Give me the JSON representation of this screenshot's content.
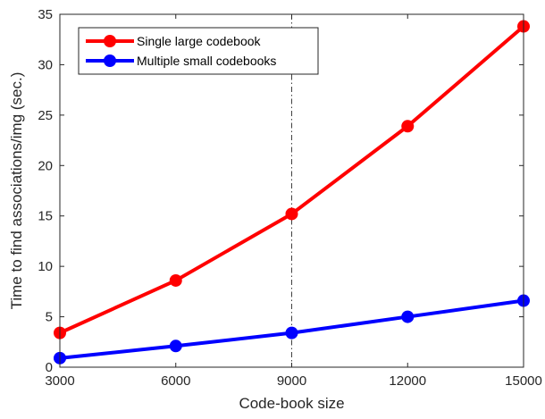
{
  "chart_data": {
    "type": "line",
    "title": "",
    "xlabel": "Code-book size",
    "ylabel": "Time to find associations/img (sec.)",
    "xlim": [
      3000,
      15000
    ],
    "ylim": [
      0,
      35
    ],
    "x": [
      3000,
      6000,
      9000,
      12000,
      15000
    ],
    "xticks": [
      "3000",
      "6000",
      "9000",
      "12000",
      "15000"
    ],
    "yticks": [
      "0",
      "5",
      "10",
      "15",
      "20",
      "25",
      "30",
      "35"
    ],
    "series": [
      {
        "name": "Single large codebook",
        "color": "#ff0000",
        "values": [
          3.4,
          8.6,
          15.2,
          23.9,
          33.8
        ]
      },
      {
        "name": "Multiple small codebooks",
        "color": "#0000ff",
        "values": [
          0.9,
          2.1,
          3.4,
          5.0,
          6.6
        ]
      }
    ],
    "reference_line": {
      "x": 9000,
      "style": "dash-dot",
      "color": "#404040"
    },
    "legend_position": "top-left",
    "grid": false
  }
}
